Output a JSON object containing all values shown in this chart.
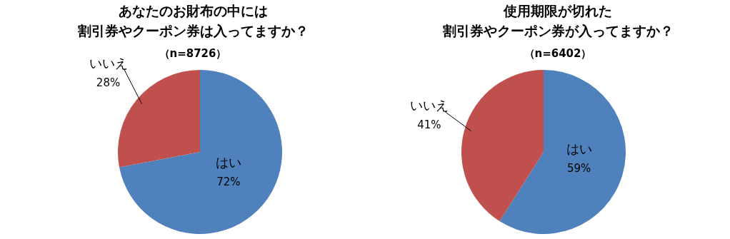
{
  "chart_data": [
    {
      "type": "pie",
      "title": "あなたのお財布の中には割引券やクーポン券は入ってますか？",
      "subtitle": "（n=8726）",
      "categories": [
        "はい",
        "いいえ"
      ],
      "values": [
        72,
        28
      ],
      "colors": [
        "#4f81bd",
        "#c0504d"
      ],
      "value_labels": [
        "72%",
        "28%"
      ]
    },
    {
      "type": "pie",
      "title": "使用期限が切れた割引券やクーポン券が入ってますか？",
      "subtitle": "（n=6402）",
      "categories": [
        "はい",
        "いいえ"
      ],
      "values": [
        59,
        41
      ],
      "colors": [
        "#4f81bd",
        "#c0504d"
      ],
      "value_labels": [
        "59%",
        "41%"
      ]
    }
  ]
}
